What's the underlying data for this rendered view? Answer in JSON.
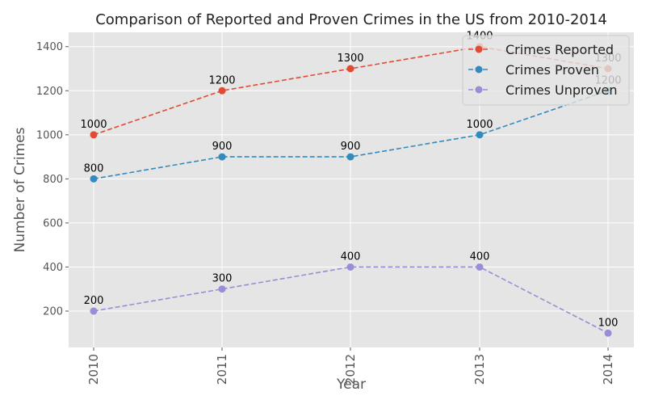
{
  "chart_data": {
    "type": "line",
    "title": "Comparison of Reported and Proven Crimes in the US from 2010-2014",
    "xlabel": "Year",
    "ylabel": "Number of Crimes",
    "categories": [
      "2010",
      "2011",
      "2012",
      "2013",
      "2014"
    ],
    "series": [
      {
        "name": "Crimes Reported",
        "values": [
          1000,
          1200,
          1300,
          1400,
          1300
        ],
        "color": "#e24a33"
      },
      {
        "name": "Crimes Proven",
        "values": [
          800,
          900,
          900,
          1000,
          1200
        ],
        "color": "#348abd"
      },
      {
        "name": "Crimes Unproven",
        "values": [
          200,
          300,
          400,
          400,
          100
        ],
        "color": "#988ed5"
      }
    ],
    "ylim": [
      35,
      1465
    ],
    "yticks": [
      200,
      400,
      600,
      800,
      1000,
      1200,
      1400
    ],
    "grid": true,
    "legend_position": "top-right",
    "line_style": "dashed",
    "marker": "circle"
  }
}
